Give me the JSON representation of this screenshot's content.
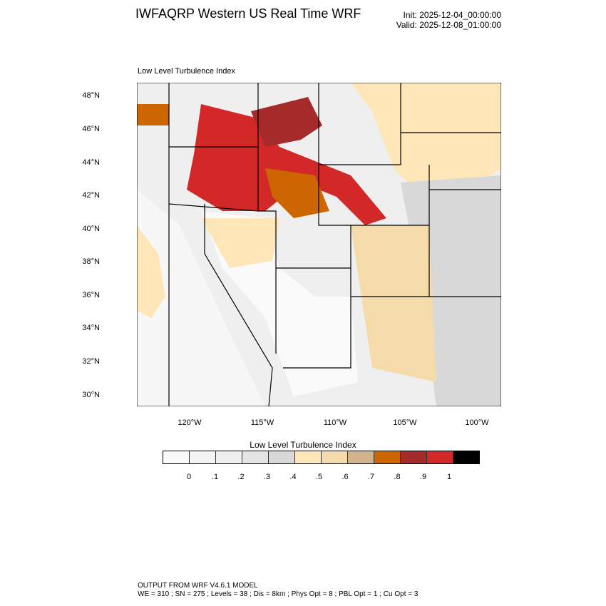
{
  "header": {
    "title": "IWFAQRP Western US Real Time WRF",
    "init": "Init: 2025-12-04_00:00:00",
    "valid": "Valid: 2025-12-08_01:00:00"
  },
  "map": {
    "subtitle": "Low Level Turbulence Index",
    "lat_labels": [
      "48°N",
      "46°N",
      "44°N",
      "42°N",
      "40°N",
      "38°N",
      "36°N",
      "34°N",
      "32°N",
      "30°N"
    ],
    "lon_labels": [
      "120°W",
      "115°W",
      "110°W",
      "105°W",
      "100°W"
    ]
  },
  "colorbar": {
    "title": "Low Level Turbulence Index",
    "colors": [
      "#fafafa",
      "#f4f4f4",
      "#efefef",
      "#e4e4e4",
      "#d8d8d8",
      "#fee6b8",
      "#f4dba9",
      "#d2b48c",
      "#cd6600",
      "#a52a2a",
      "#d22828",
      "#000000"
    ],
    "ticks": [
      "0",
      ".1",
      ".2",
      ".3",
      ".4",
      ".5",
      ".6",
      ".7",
      ".8",
      ".9",
      "1"
    ]
  },
  "footer": {
    "line1": "OUTPUT FROM WRF V4.6.1 MODEL",
    "line2": "WE = 310 ; SN = 275 ; Levels = 38 ; Dis = 8km ; Phys Opt = 8 ; PBL Opt = 1 ; Cu Opt = 3"
  }
}
